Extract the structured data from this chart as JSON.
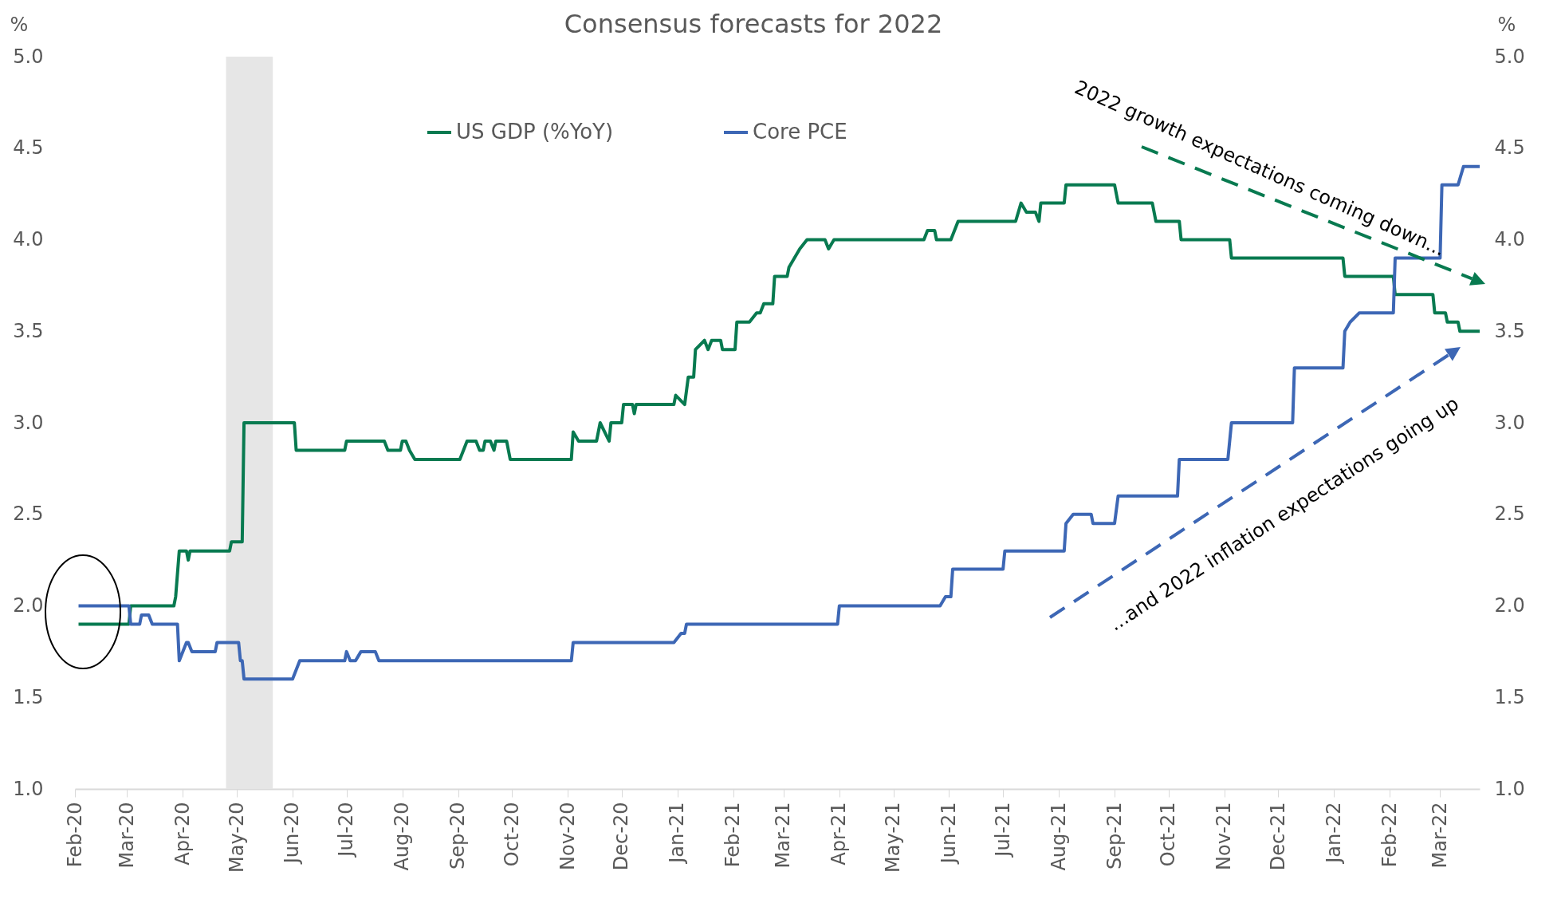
{
  "chart_data": {
    "type": "line",
    "title": "Consensus forecasts for 2022",
    "ylabel": "%",
    "y2label": "%",
    "xlim": [
      "2020-02-01",
      "2022-03-23"
    ],
    "xticks": [
      {
        "value": "2020-02-01",
        "label": "Feb-20"
      },
      {
        "value": "2020-03-01",
        "label": "Mar-20"
      },
      {
        "value": "2020-04-01",
        "label": "Apr-20"
      },
      {
        "value": "2020-05-01",
        "label": "May-20"
      },
      {
        "value": "2020-06-01",
        "label": "Jun-20"
      },
      {
        "value": "2020-07-01",
        "label": "Jul-20"
      },
      {
        "value": "2020-08-01",
        "label": "Aug-20"
      },
      {
        "value": "2020-09-01",
        "label": "Sep-20"
      },
      {
        "value": "2020-10-01",
        "label": "Oct-20"
      },
      {
        "value": "2020-11-01",
        "label": "Nov-20"
      },
      {
        "value": "2020-12-01",
        "label": "Dec-20"
      },
      {
        "value": "2021-01-01",
        "label": "Jan-21"
      },
      {
        "value": "2021-02-01",
        "label": "Feb-21"
      },
      {
        "value": "2021-03-01",
        "label": "Mar-21"
      },
      {
        "value": "2021-04-01",
        "label": "Apr-21"
      },
      {
        "value": "2021-05-01",
        "label": "May-21"
      },
      {
        "value": "2021-06-01",
        "label": "Jun-21"
      },
      {
        "value": "2021-07-01",
        "label": "Jul-21"
      },
      {
        "value": "2021-08-01",
        "label": "Aug-21"
      },
      {
        "value": "2021-09-01",
        "label": "Sep-21"
      },
      {
        "value": "2021-10-01",
        "label": "Oct-21"
      },
      {
        "value": "2021-11-01",
        "label": "Nov-21"
      },
      {
        "value": "2021-12-01",
        "label": "Dec-21"
      },
      {
        "value": "2022-01-01",
        "label": "Jan-22"
      },
      {
        "value": "2022-02-01",
        "label": "Feb-22"
      },
      {
        "value": "2022-03-01",
        "label": "Mar-22"
      }
    ],
    "ylim": [
      1.0,
      5.0
    ],
    "yticks": [
      {
        "value": 1.0,
        "label": "1.0"
      },
      {
        "value": 1.5,
        "label": "1.5"
      },
      {
        "value": 2.0,
        "label": "2.0"
      },
      {
        "value": 2.5,
        "label": "2.5"
      },
      {
        "value": 3.0,
        "label": "3.0"
      },
      {
        "value": 3.5,
        "label": "3.5"
      },
      {
        "value": 4.0,
        "label": "4.0"
      },
      {
        "value": 4.5,
        "label": "4.5"
      },
      {
        "value": 5.0,
        "label": "5.0"
      }
    ],
    "y2lim": [
      1.0,
      5.0
    ],
    "y2ticks": [
      {
        "value": 1.0,
        "label": "1.0"
      },
      {
        "value": 1.5,
        "label": "1.5"
      },
      {
        "value": 2.0,
        "label": "2.0"
      },
      {
        "value": 2.5,
        "label": "2.5"
      },
      {
        "value": 3.0,
        "label": "3.0"
      },
      {
        "value": 3.5,
        "label": "3.5"
      },
      {
        "value": 4.0,
        "label": "4.0"
      },
      {
        "value": 4.5,
        "label": "4.5"
      },
      {
        "value": 5.0,
        "label": "5.0"
      }
    ],
    "legend": "top",
    "bands": [
      {
        "axis": "x",
        "from": "2020-04-25",
        "to": "2020-05-21",
        "color": "#e6e6e6"
      }
    ],
    "annotations": [
      "2022 growth expectations coming down...",
      "...and 2022 inflation expectations going up"
    ],
    "series": [
      {
        "name": "US GDP (%YoY)",
        "color": "#087a50",
        "x": [
          "2020-02-03",
          "2020-03-02",
          "2020-03-03",
          "2020-03-27",
          "2020-03-28",
          "2020-03-30",
          "2020-04-03",
          "2020-04-04",
          "2020-04-05",
          "2020-04-27",
          "2020-04-28",
          "2020-05-04",
          "2020-05-05",
          "2020-06-02",
          "2020-06-03",
          "2020-06-30",
          "2020-07-01",
          "2020-07-22",
          "2020-07-24",
          "2020-07-31",
          "2020-08-01",
          "2020-08-03",
          "2020-08-05",
          "2020-08-08",
          "2020-09-02",
          "2020-09-06",
          "2020-09-11",
          "2020-09-13",
          "2020-09-15",
          "2020-09-16",
          "2020-09-19",
          "2020-09-21",
          "2020-09-22",
          "2020-09-28",
          "2020-09-30",
          "2020-11-03",
          "2020-11-04",
          "2020-11-07",
          "2020-11-17",
          "2020-11-19",
          "2020-11-24",
          "2020-11-25",
          "2020-12-01",
          "2020-12-02",
          "2020-12-07",
          "2020-12-08",
          "2020-12-09",
          "2020-12-30",
          "2020-12-31",
          "2021-01-05",
          "2021-01-07",
          "2021-01-10",
          "2021-01-11",
          "2021-01-16",
          "2021-01-18",
          "2021-01-20",
          "2021-01-25",
          "2021-01-26",
          "2021-02-02",
          "2021-02-03",
          "2021-02-10",
          "2021-02-14",
          "2021-02-16",
          "2021-02-18",
          "2021-02-23",
          "2021-02-24",
          "2021-03-03",
          "2021-03-04",
          "2021-03-07",
          "2021-03-10",
          "2021-03-14",
          "2021-03-24",
          "2021-03-26",
          "2021-03-29",
          "2021-05-18",
          "2021-05-20",
          "2021-05-24",
          "2021-05-25",
          "2021-06-02",
          "2021-06-06",
          "2021-07-08",
          "2021-07-11",
          "2021-07-14",
          "2021-07-19",
          "2021-07-21",
          "2021-07-22",
          "2021-08-04",
          "2021-08-05",
          "2021-09-01",
          "2021-09-03",
          "2021-09-22",
          "2021-09-24",
          "2021-10-07",
          "2021-10-08",
          "2021-11-04",
          "2021-11-05",
          "2022-01-06",
          "2022-01-07",
          "2022-02-03",
          "2022-02-04",
          "2022-02-25",
          "2022-02-26",
          "2022-03-04",
          "2022-03-05",
          "2022-03-11",
          "2022-03-12",
          "2022-03-23"
        ],
        "values": [
          1.9,
          1.9,
          2.0,
          2.0,
          2.05,
          2.3,
          2.3,
          2.25,
          2.3,
          2.3,
          2.35,
          2.35,
          3.0,
          3.0,
          2.85,
          2.85,
          2.9,
          2.9,
          2.85,
          2.85,
          2.9,
          2.9,
          2.85,
          2.8,
          2.8,
          2.9,
          2.9,
          2.85,
          2.85,
          2.9,
          2.9,
          2.85,
          2.9,
          2.9,
          2.8,
          2.8,
          2.95,
          2.9,
          2.9,
          3.0,
          2.9,
          3.0,
          3.0,
          3.1,
          3.1,
          3.05,
          3.1,
          3.1,
          3.15,
          3.1,
          3.25,
          3.25,
          3.4,
          3.45,
          3.4,
          3.45,
          3.45,
          3.4,
          3.4,
          3.55,
          3.55,
          3.6,
          3.6,
          3.65,
          3.65,
          3.8,
          3.8,
          3.85,
          3.9,
          3.95,
          4.0,
          4.0,
          3.95,
          4.0,
          4.0,
          4.05,
          4.05,
          4.0,
          4.0,
          4.1,
          4.1,
          4.2,
          4.15,
          4.15,
          4.1,
          4.2,
          4.2,
          4.3,
          4.3,
          4.2,
          4.2,
          4.1,
          4.1,
          4.0,
          4.0,
          3.9,
          3.9,
          3.8,
          3.8,
          3.7,
          3.7,
          3.6,
          3.6,
          3.55,
          3.55,
          3.5,
          3.5
        ]
      },
      {
        "name": "Core PCE",
        "color": "#3d67b5",
        "x": [
          "2020-02-03",
          "2020-03-02",
          "2020-03-03",
          "2020-03-08",
          "2020-03-09",
          "2020-03-13",
          "2020-03-15",
          "2020-03-29",
          "2020-03-30",
          "2020-04-03",
          "2020-04-04",
          "2020-04-06",
          "2020-04-19",
          "2020-04-20",
          "2020-05-02",
          "2020-05-03",
          "2020-05-04",
          "2020-05-05",
          "2020-06-01",
          "2020-06-03",
          "2020-06-05",
          "2020-06-30",
          "2020-07-01",
          "2020-07-03",
          "2020-07-06",
          "2020-07-09",
          "2020-07-17",
          "2020-07-19",
          "2020-11-03",
          "2020-11-04",
          "2020-12-30",
          "2021-01-03",
          "2021-01-05",
          "2021-01-06",
          "2021-03-31",
          "2021-04-01",
          "2021-05-27",
          "2021-05-30",
          "2021-06-02",
          "2021-06-03",
          "2021-07-01",
          "2021-07-02",
          "2021-08-04",
          "2021-08-05",
          "2021-08-09",
          "2021-08-19",
          "2021-08-20",
          "2021-09-01",
          "2021-09-03",
          "2021-10-06",
          "2021-10-07",
          "2021-11-03",
          "2021-11-05",
          "2021-12-09",
          "2021-12-10",
          "2022-01-06",
          "2022-01-07",
          "2022-01-10",
          "2022-01-15",
          "2022-02-03",
          "2022-02-04",
          "2022-03-01",
          "2022-03-02",
          "2022-03-11",
          "2022-03-14",
          "2022-03-23"
        ],
        "values": [
          2.0,
          2.0,
          1.9,
          1.9,
          1.95,
          1.95,
          1.9,
          1.9,
          1.7,
          1.8,
          1.8,
          1.75,
          1.75,
          1.8,
          1.8,
          1.7,
          1.7,
          1.6,
          1.6,
          1.65,
          1.7,
          1.7,
          1.75,
          1.7,
          1.7,
          1.75,
          1.75,
          1.7,
          1.7,
          1.8,
          1.8,
          1.85,
          1.85,
          1.9,
          1.9,
          2.0,
          2.0,
          2.05,
          2.05,
          2.2,
          2.2,
          2.3,
          2.3,
          2.45,
          2.5,
          2.5,
          2.45,
          2.45,
          2.6,
          2.6,
          2.8,
          2.8,
          3.0,
          3.0,
          3.3,
          3.3,
          3.5,
          3.55,
          3.6,
          3.6,
          3.9,
          3.9,
          4.3,
          4.3,
          4.4,
          4.4
        ]
      }
    ]
  }
}
